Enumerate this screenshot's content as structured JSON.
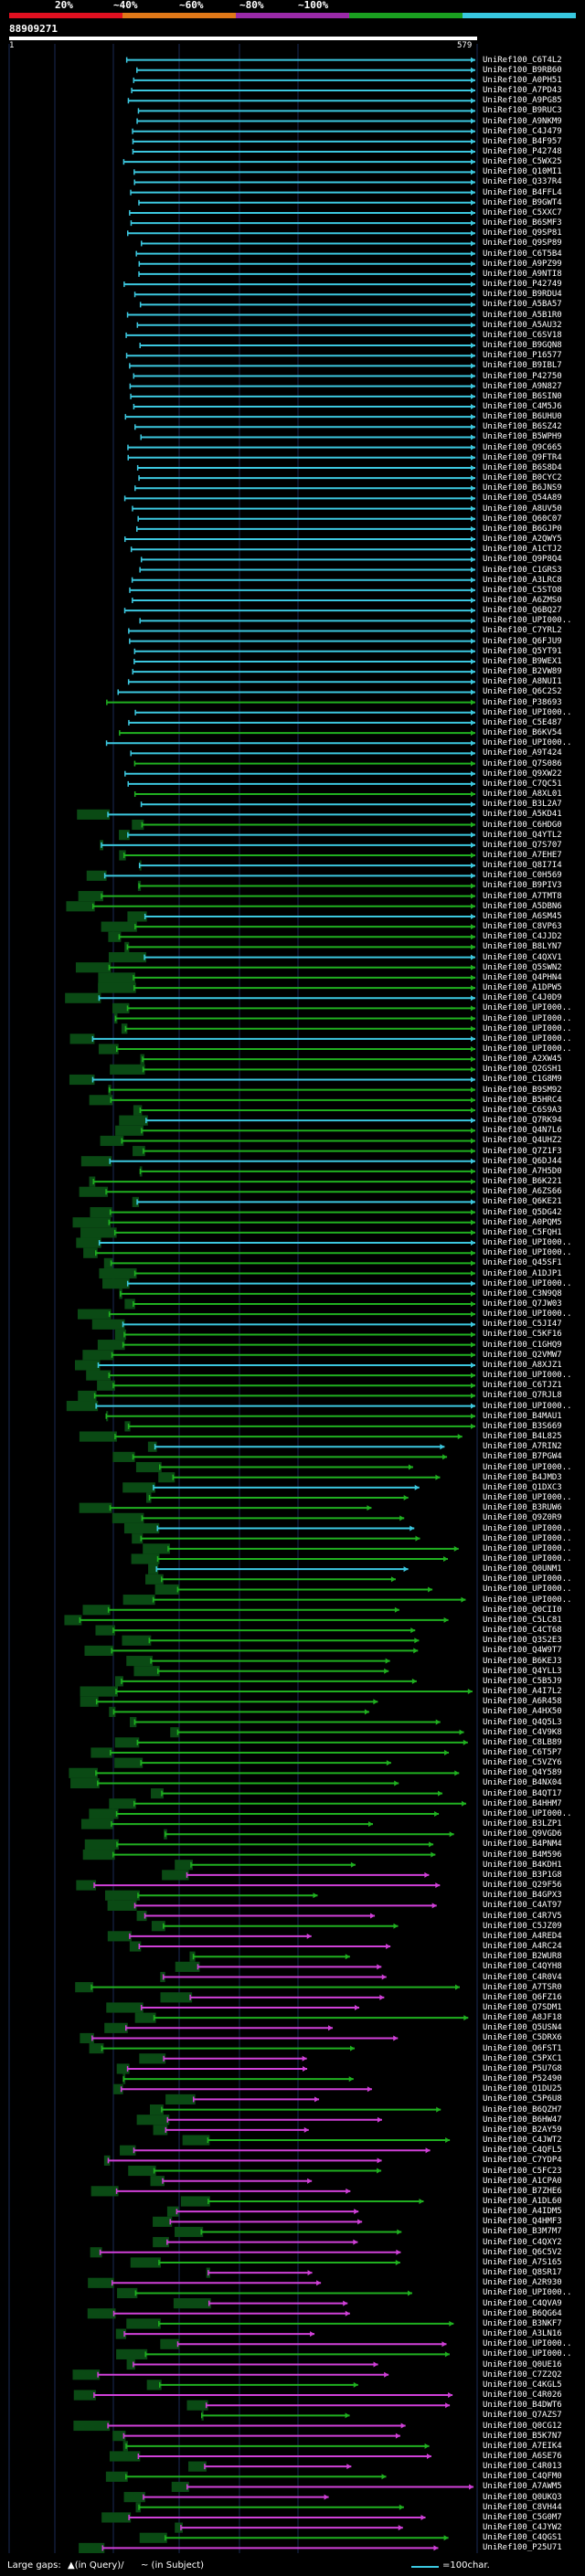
{
  "header": {
    "scale_labels": [
      "20%",
      "~40%",
      "~60%",
      "~80%",
      "~100%"
    ],
    "colorbar": [
      "#e01020",
      "#e07818",
      "#9a2aa8",
      "#1aa020",
      "#38c8e0"
    ],
    "query_name": "88909271",
    "query_start": "1",
    "query_end": "579"
  },
  "colors": {
    "blue": "#3cc8e0",
    "green": "#20b020",
    "magenta": "#d040d8",
    "darkgreen": "#0a4a14",
    "guide": "#1a2a55"
  },
  "hits": [
    "UniRef100_C6T4L2",
    "UniRef100_B9RB60",
    "UniRef100_A0PH51",
    "UniRef100_A7PD43",
    "UniRef100_A9PG85",
    "UniRef100_B9RUC3",
    "UniRef100_A9NKM9",
    "UniRef100_C4J479",
    "UniRef100_B4F957",
    "UniRef100_P42748",
    "UniRef100_C5WX25",
    "UniRef100_Q10MI1",
    "UniRef100_Q337R4",
    "UniRef100_B4FFL4",
    "UniRef100_B9GWT4",
    "UniRef100_C5XXC7",
    "UniRef100_B6SMF3",
    "UniRef100_Q9SP81",
    "UniRef100_Q9SP89",
    "UniRef100_C6T5B4",
    "UniRef100_A9PZ99",
    "UniRef100_A9NTI8",
    "UniRef100_P42749",
    "UniRef100_B9RDU4",
    "UniRef100_A5BA57",
    "UniRef100_A5B1R0",
    "UniRef100_A5AU32",
    "UniRef100_C6SV18",
    "UniRef100_B9GQN8",
    "UniRef100_P16577",
    "UniRef100_B9IBL7",
    "UniRef100_P42750",
    "UniRef100_A9N827",
    "UniRef100_B6SIN0",
    "UniRef100_C4M5J6",
    "UniRef100_B6UHU0",
    "UniRef100_B6SZ42",
    "UniRef100_B5WPH9",
    "UniRef100_Q9C665",
    "UniRef100_Q9FTR4",
    "UniRef100_B6S8D4",
    "UniRef100_B0CYC2",
    "UniRef100_B6JNS9",
    "UniRef100_Q54A89",
    "UniRef100_A8UV50",
    "UniRef100_Q60C07",
    "UniRef100_B6GJP0",
    "UniRef100_A2QWY5",
    "UniRef100_A1CTJ2",
    "UniRef100_Q9P8Q4",
    "UniRef100_C1GRS3",
    "UniRef100_A3LRC8",
    "UniRef100_C5STO8",
    "UniRef100_A6ZMS0",
    "UniRef100_Q6BQ27",
    "UniRef100_UPI000..",
    "UniRef100_C7YRL2",
    "UniRef100_Q6FJU9",
    "UniRef100_Q5YT91",
    "UniRef100_B9WEX1",
    "UniRef100_B2VW89",
    "UniRef100_A8NUI1",
    "UniRef100_Q6C2S2",
    "UniRef100_P38693",
    "UniRef100_UPI000..",
    "UniRef100_C5E487",
    "UniRef100_B6KV54",
    "UniRef100_UPI000..",
    "UniRef100_A9T424",
    "UniRef100_Q7S086",
    "UniRef100_Q9XW22",
    "UniRef100_C7QC51",
    "UniRef100_A8XL01",
    "UniRef100_B3L2A7",
    "UniRef100_A5KD41",
    "UniRef100_C6HDG0",
    "UniRef100_Q4YTL2",
    "UniRef100_Q7S707",
    "UniRef100_A7EHE7",
    "UniRef100_Q8I7I4",
    "UniRef100_C0H569",
    "UniRef100_B9PIV3",
    "UniRef100_A7TMT8",
    "UniRef100_A5DBN6",
    "UniRef100_A6SM45",
    "UniRef100_C8VP63",
    "UniRef100_C4JJD2",
    "UniRef100_B8LYN7",
    "UniRef100_C4QXV1",
    "UniRef100_Q5SWN2",
    "UniRef100_Q4PHN4",
    "UniRef100_A1DPW5",
    "UniRef100_C4J0D9",
    "UniRef100_UPI000..",
    "UniRef100_UPI000..",
    "UniRef100_UPI000..",
    "UniRef100_UPI000..",
    "UniRef100_UPI000..",
    "UniRef100_A2XW45",
    "UniRef100_Q2GSH1",
    "UniRef100_C1G8M9",
    "UniRef100_B9SM92",
    "UniRef100_B5HRC4",
    "UniRef100_C6S9A3",
    "UniRef100_Q7RK94",
    "UniRef100_Q4N7L6",
    "UniRef100_Q4UHZ2",
    "UniRef100_Q7Z1F3",
    "UniRef100_Q6DJ44",
    "UniRef100_A7H5D0",
    "UniRef100_B6K221",
    "UniRef100_A6ZS66",
    "UniRef100_Q6KE21",
    "UniRef100_Q5DG42",
    "UniRef100_A0PQM5",
    "UniRef100_C5FQH1",
    "UniRef100_UPI000..",
    "UniRef100_UPI000..",
    "UniRef100_Q45SF1",
    "UniRef100_A1DJP1",
    "UniRef100_UPI000..",
    "UniRef100_C3N9Q8",
    "UniRef100_Q7JW03",
    "UniRef100_UPI000..",
    "UniRef100_C5JI47",
    "UniRef100_C5KF16",
    "UniRef100_C1GHQ9",
    "UniRef100_Q2VMW7",
    "UniRef100_A8XJZ1",
    "UniRef100_UPI000..",
    "UniRef100_C6TJZ1",
    "UniRef100_Q7RJL8",
    "UniRef100_UPI000..",
    "UniRef100_B4MAU1",
    "UniRef100_B3S669",
    "UniRef100_B4L825",
    "UniRef100_A7RIN2",
    "UniRef100_B7PGW4",
    "UniRef100_UPI000..",
    "UniRef100_B4JMD3",
    "UniRef100_Q1DXC3",
    "UniRef100_UPI000..",
    "UniRef100_B3RUW6",
    "UniRef100_Q9Z0R9",
    "UniRef100_UPI000..",
    "UniRef100_UPI000..",
    "UniRef100_UPI000..",
    "UniRef100_UPI000..",
    "UniRef100_Q0UNM1",
    "UniRef100_UPI000..",
    "UniRef100_UPI000..",
    "UniRef100_UPI000..",
    "UniRef100_Q0CII0",
    "UniRef100_C5LC81",
    "UniRef100_C4CT68",
    "UniRef100_Q3S2E3",
    "UniRef100_Q4W9T7",
    "UniRef100_B6KEJ3",
    "UniRef100_Q4YLL3",
    "UniRef100_C5B5J9",
    "UniRef100_A4I7L2",
    "UniRef100_A6R458",
    "UniRef100_A4HX50",
    "UniRef100_Q4Q5L3",
    "UniRef100_C4V9K8",
    "UniRef100_C8LB89",
    "UniRef100_C6T5P7",
    "UniRef100_C5VZY6",
    "UniRef100_Q4Y589",
    "UniRef100_B4NX04",
    "UniRef100_B4QT17",
    "UniRef100_B4HHM7",
    "UniRef100_UPI000..",
    "UniRef100_B3LZP1",
    "UniRef100_Q9VGD6",
    "UniRef100_B4PNM4",
    "UniRef100_B4M596",
    "UniRef100_B4KDH1",
    "UniRef100_B3P1G8",
    "UniRef100_Q29F56",
    "UniRef100_B4GPX3",
    "UniRef100_C4AT97",
    "UniRef100_C4R7V5",
    "UniRef100_C5JZ09",
    "UniRef100_A4RED4",
    "UniRef100_A4RC24",
    "UniRef100_B2WUR8",
    "UniRef100_C4QYH8",
    "UniRef100_C4R0V4",
    "UniRef100_A7TSR0",
    "UniRef100_Q6FZ16",
    "UniRef100_Q7SDM1",
    "UniRef100_A8JF18",
    "UniRef100_Q5USN4",
    "UniRef100_C5DRX6",
    "UniRef100_Q6FST1",
    "UniRef100_C5PXC1",
    "UniRef100_P5U7G8",
    "UniRef100_P52490",
    "UniRef100_Q1DU25",
    "UniRef100_C5P6U8",
    "UniRef100_B6QZH7",
    "UniRef100_B6HW47",
    "UniRef100_B2AY59",
    "UniRef100_C4JWT2",
    "UniRef100_C4QFL5",
    "UniRef100_C7YDP4",
    "UniRef100_C5FC23",
    "UniRef100_A1CPA0",
    "UniRef100_B7ZHE6",
    "UniRef100_A1DL60",
    "UniRef100_A4IDM5",
    "UniRef100_Q4HMF3",
    "UniRef100_B3M7M7",
    "UniRef100_C4QXY2",
    "UniRef100_Q6C5V2",
    "UniRef100_A7S165",
    "UniRef100_Q8SR17",
    "UniRef100_A2R930",
    "UniRef100_UPI000..",
    "UniRef100_C4QVA9",
    "UniRef100_B6QG64",
    "UniRef100_B3NKF7",
    "UniRef100_A3LN16",
    "UniRef100_UPI000..",
    "UniRef100_UPI000..",
    "UniRef100_Q0UE16",
    "UniRef100_C7Z2Q2",
    "UniRef100_C4KGL5",
    "UniRef100_C4R026",
    "UniRef100_B4DWT6",
    "UniRef100_Q7AZS7",
    "UniRef100_Q0CG12",
    "UniRef100_B5K7N7",
    "UniRef100_A7EIK4",
    "UniRef100_A6SE76",
    "UniRef100_C4R013",
    "UniRef100_C4QFM0",
    "UniRef100_A7AWM5",
    "UniRef100_Q0UKQ3",
    "UniRef100_C8VH44",
    "UniRef100_C5G0M7",
    "UniRef100_C4JYW2",
    "UniRef100_C4QGS1",
    "UniRef100_P25U71"
  ],
  "legend": {
    "prefix": "Large gaps:",
    "query_part": "▲(in Query)/",
    "subject_part": "~ (in Subject)",
    "width_label": "=100char."
  }
}
